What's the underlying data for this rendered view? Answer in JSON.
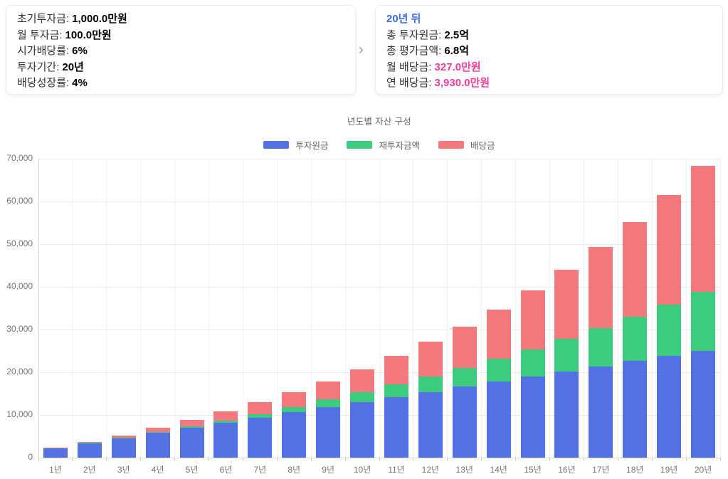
{
  "summary_left": {
    "rows": [
      {
        "label": "초기투자금:",
        "value": "1,000.0만원"
      },
      {
        "label": "월 투자금:",
        "value": "100.0만원"
      },
      {
        "label": "시가배당률:",
        "value": "6%"
      },
      {
        "label": "투자기간:",
        "value": "20년"
      },
      {
        "label": "배당성장률:",
        "value": "4%"
      }
    ]
  },
  "summary_right": {
    "title": "20년 뒤",
    "rows": [
      {
        "label": "총 투자원금:",
        "value": "2.5억",
        "highlight": false
      },
      {
        "label": "총 평가금액:",
        "value": "6.8억",
        "highlight": false
      },
      {
        "label": "월 배당금:",
        "value": "327.0만원",
        "highlight": true
      },
      {
        "label": "연 배당금:",
        "value": "3,930.0만원",
        "highlight": true
      }
    ],
    "highlight_color": "#F23E98",
    "title_color": "#3A6BEA"
  },
  "chevron": "›",
  "chart_data": {
    "type": "bar",
    "stacked": true,
    "title": "년도별 자산 구성",
    "xlabel": "",
    "ylabel": "",
    "ylim": [
      0,
      70000
    ],
    "ytick_step": 10000,
    "grid": true,
    "legend_position": "top",
    "categories": [
      "1년",
      "2년",
      "3년",
      "4년",
      "5년",
      "6년",
      "7년",
      "8년",
      "9년",
      "10년",
      "11년",
      "12년",
      "13년",
      "14년",
      "15년",
      "16년",
      "17년",
      "18년",
      "19년",
      "20년"
    ],
    "series": [
      {
        "name": "투자원금",
        "key": "principal",
        "color": "#5471E4",
        "values": [
          2200,
          3400,
          4600,
          5800,
          7000,
          8200,
          9400,
          10600,
          11800,
          13000,
          14200,
          15400,
          16600,
          17800,
          19000,
          20200,
          21400,
          22600,
          23800,
          25000
        ]
      },
      {
        "name": "재투자금액",
        "key": "reinvested",
        "color": "#3DCB7D",
        "values": [
          10,
          40,
          100,
          200,
          350,
          550,
          800,
          1200,
          1800,
          2350,
          2950,
          3600,
          4400,
          5300,
          6400,
          7600,
          9000,
          10400,
          12100,
          13900
        ]
      },
      {
        "name": "배당금",
        "key": "dividends",
        "color": "#F4797E",
        "values": [
          90,
          160,
          500,
          950,
          1500,
          2100,
          2800,
          3550,
          4300,
          5300,
          6650,
          8100,
          9750,
          11600,
          13800,
          16200,
          18900,
          22100,
          25600,
          29500
        ]
      }
    ]
  }
}
